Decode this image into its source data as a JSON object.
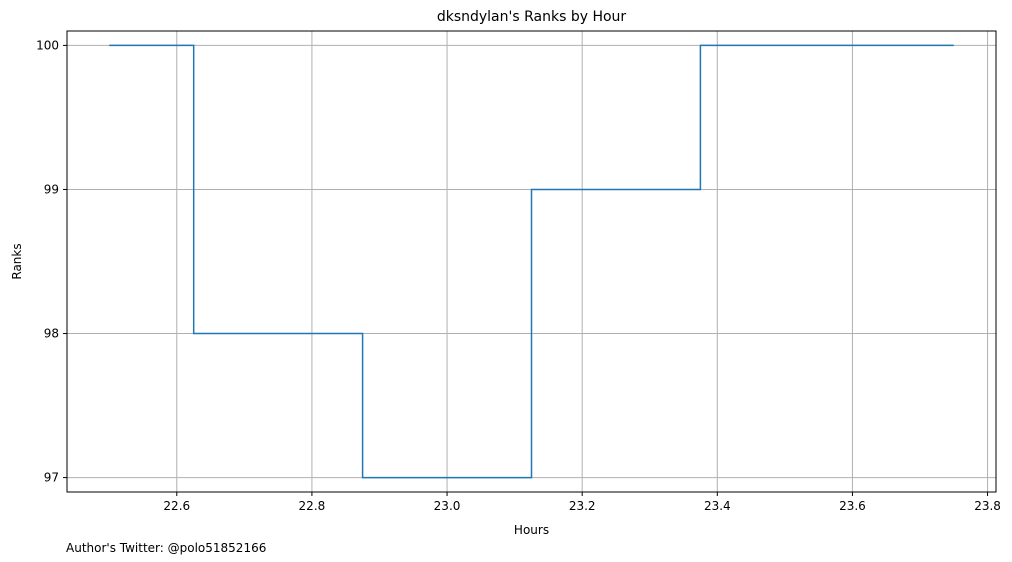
{
  "chart_data": {
    "type": "line",
    "drawstyle": "step",
    "title": "dksndylan's Ranks by Hour",
    "xlabel": "Hours",
    "ylabel": "Ranks",
    "x": [
      22.5,
      22.625,
      22.875,
      23.125,
      23.375,
      23.75
    ],
    "series": [
      {
        "values": [
          100,
          98,
          97,
          99,
          100,
          100
        ],
        "color": "#1f77b4"
      }
    ],
    "xlim": [
      22.4375,
      23.8125
    ],
    "ylim": [
      100.1,
      96.9
    ],
    "y_inverted": true,
    "xticks": [
      22.6,
      22.8,
      23.0,
      23.2,
      23.4,
      23.6,
      23.8
    ],
    "xtick_labels": [
      "22.6",
      "22.8",
      "23.0",
      "23.2",
      "23.4",
      "23.6",
      "23.8"
    ],
    "yticks": [
      97,
      98,
      99,
      100
    ],
    "ytick_labels": [
      "97",
      "98",
      "99",
      "100"
    ],
    "grid": true,
    "grid_color": "#b0b0b0"
  },
  "footnote": "Author's Twitter: @polo51852166"
}
